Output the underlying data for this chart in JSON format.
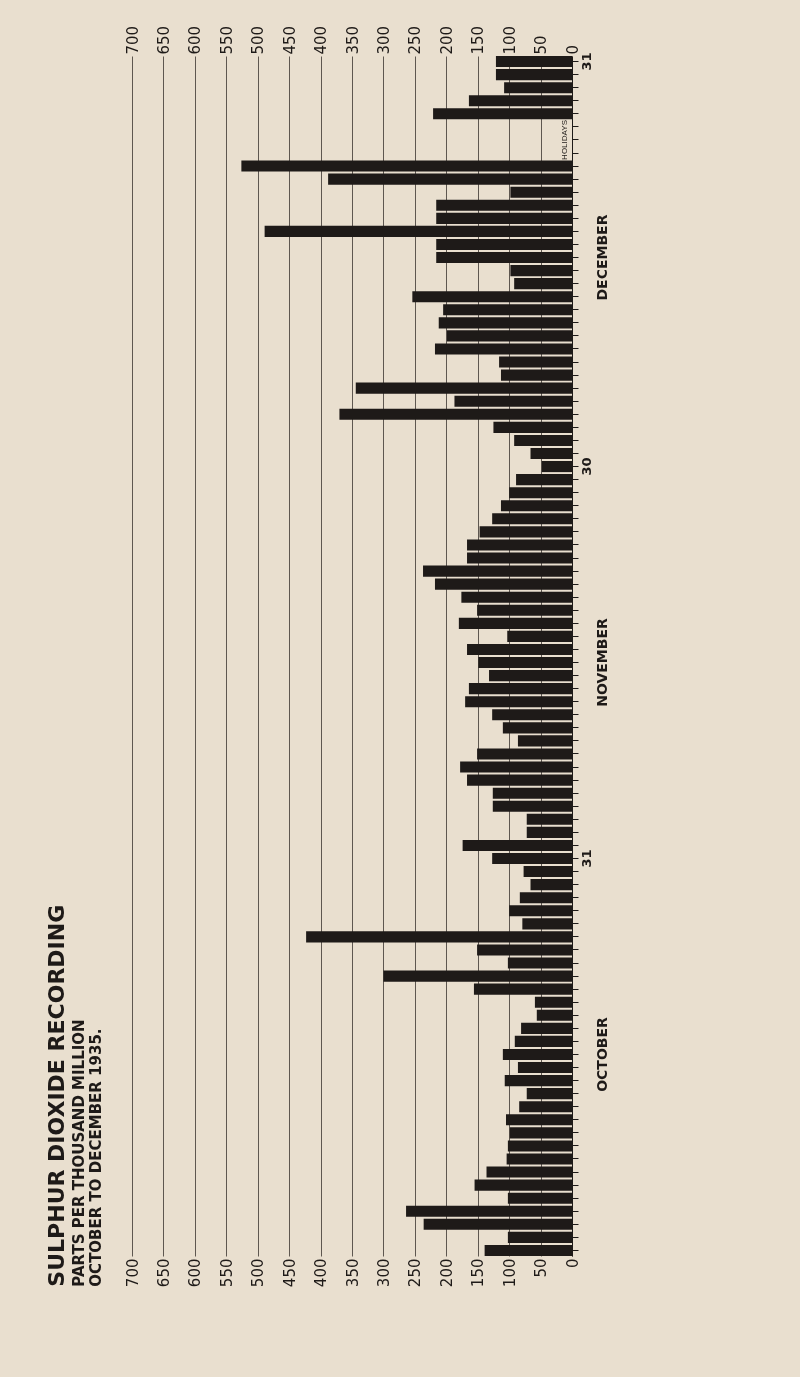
{
  "chart_data": {
    "type": "bar",
    "orientation": "horizontal",
    "title": "SULPHUR DIOXIDE RECORDING",
    "subtitle": "PARTS PER THOUSAND MILLION",
    "color": "#1e1a18",
    "grid": "x",
    "legend": false,
    "categories": [
      "31",
      null,
      null,
      null,
      null,
      null,
      null,
      null,
      null,
      null,
      null,
      null,
      null,
      null,
      null,
      null,
      null,
      null,
      null,
      null,
      null,
      null,
      null,
      null,
      null,
      null,
      null,
      null,
      null,
      null,
      null,
      "30",
      null,
      null,
      null,
      null,
      null,
      null,
      null,
      null,
      null,
      null,
      null,
      null,
      null,
      null,
      null,
      null,
      null,
      null,
      null,
      null,
      null,
      null,
      null,
      null,
      null,
      null,
      null,
      null,
      null,
      "31",
      null,
      null,
      null,
      null,
      null,
      null,
      null,
      null,
      null,
      null,
      null,
      null,
      null,
      null,
      null,
      null,
      null,
      null,
      null,
      null,
      null,
      null,
      null,
      null,
      null,
      null,
      null,
      null,
      null,
      null
    ],
    "values": [
      121,
      121,
      108,
      164,
      221,
      null,
      null,
      null,
      526,
      388,
      98,
      216,
      216,
      489,
      216,
      216,
      98,
      92,
      254,
      205,
      212,
      199,
      218,
      116,
      113,
      344,
      187,
      370,
      125,
      92,
      66,
      48,
      89,
      100,
      113,
      127,
      147,
      167,
      167,
      237,
      218,
      176,
      151,
      180,
      103,
      167,
      149,
      132,
      164,
      170,
      127,
      110,
      86,
      151,
      178,
      167,
      126,
      126,
      72,
      72,
      174,
      127,
      77,
      66,
      83,
      100,
      79,
      423,
      151,
      102,
      300,
      156,
      59,
      56,
      81,
      91,
      110,
      86,
      107,
      72,
      84,
      105,
      99,
      102,
      104,
      136,
      155,
      102,
      264,
      236,
      102,
      139
    ],
    "xlim": [
      700,
      0
    ],
    "xticks": [
      0,
      50,
      100,
      150,
      200,
      250,
      300,
      350,
      400,
      450,
      500,
      550,
      600,
      650,
      700
    ],
    "x2lim": [
      700,
      0
    ],
    "x2ticks": [
      0,
      50,
      100,
      150,
      200,
      250,
      300,
      350,
      400,
      450,
      500,
      550,
      600,
      650,
      700
    ],
    "annotations": [
      "OCTOBER TO DECEMBER 1935.",
      "HOLIDAYS",
      "DECEMBER",
      "NOVEMBER",
      "OCTOBER"
    ]
  }
}
